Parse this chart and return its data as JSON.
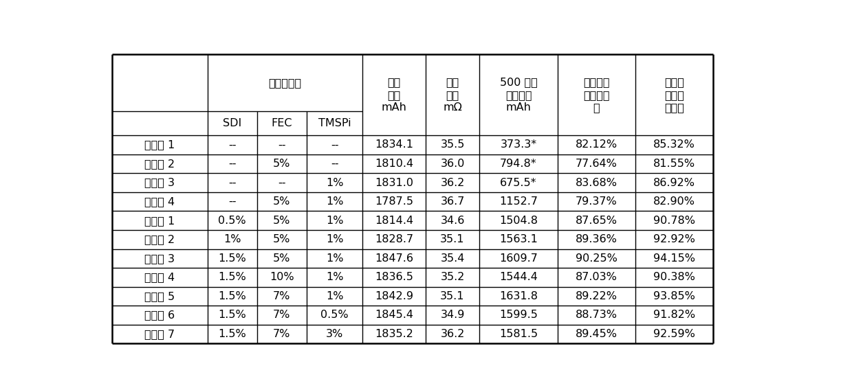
{
  "additive_header": "添加剂含量",
  "sub_headers": [
    "SDI",
    "FEC",
    "TMSPi"
  ],
  "col_headers": [
    "分容\n容量\nmAh",
    "分容\n内阳\nmΩ",
    "500 周循\n环后容量\nmAh",
    "高温存储\n容量保持\n率",
    "高温存\n储容量\n恢复率"
  ],
  "rows": [
    [
      "对比例 1",
      "--",
      "--",
      "--",
      "1834.1",
      "35.5",
      "373.3*",
      "82.12%",
      "85.32%"
    ],
    [
      "对比例 2",
      "--",
      "5%",
      "--",
      "1810.4",
      "36.0",
      "794.8*",
      "77.64%",
      "81.55%"
    ],
    [
      "对比例 3",
      "--",
      "--",
      "1%",
      "1831.0",
      "36.2",
      "675.5*",
      "83.68%",
      "86.92%"
    ],
    [
      "对比例 4",
      "--",
      "5%",
      "1%",
      "1787.5",
      "36.7",
      "1152.7",
      "79.37%",
      "82.90%"
    ],
    [
      "实施例 1",
      "0.5%",
      "5%",
      "1%",
      "1814.4",
      "34.6",
      "1504.8",
      "87.65%",
      "90.78%"
    ],
    [
      "实施例 2",
      "1%",
      "5%",
      "1%",
      "1828.7",
      "35.1",
      "1563.1",
      "89.36%",
      "92.92%"
    ],
    [
      "实施例 3",
      "1.5%",
      "5%",
      "1%",
      "1847.6",
      "35.4",
      "1609.7",
      "90.25%",
      "94.15%"
    ],
    [
      "实施例 4",
      "1.5%",
      "10%",
      "1%",
      "1836.5",
      "35.2",
      "1544.4",
      "87.03%",
      "90.38%"
    ],
    [
      "实施例 5",
      "1.5%",
      "7%",
      "1%",
      "1842.9",
      "35.1",
      "1631.8",
      "89.22%",
      "93.85%"
    ],
    [
      "实施例 6",
      "1.5%",
      "7%",
      "0.5%",
      "1845.4",
      "34.9",
      "1599.5",
      "88.73%",
      "91.82%"
    ],
    [
      "实施例 7",
      "1.5%",
      "7%",
      "3%",
      "1835.2",
      "36.2",
      "1581.5",
      "89.45%",
      "92.59%"
    ]
  ],
  "bg_color": "#ffffff",
  "line_color": "#000000",
  "text_color": "#000000"
}
